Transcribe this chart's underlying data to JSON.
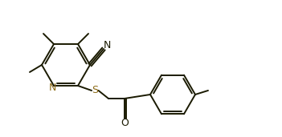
{
  "line_color": "#1a1a00",
  "bg_color": "#ffffff",
  "lw": 1.4,
  "figsize": [
    3.51,
    1.71
  ],
  "dpi": 100,
  "xlim": [
    0.0,
    3.51
  ],
  "ylim": [
    0.0,
    1.71
  ]
}
